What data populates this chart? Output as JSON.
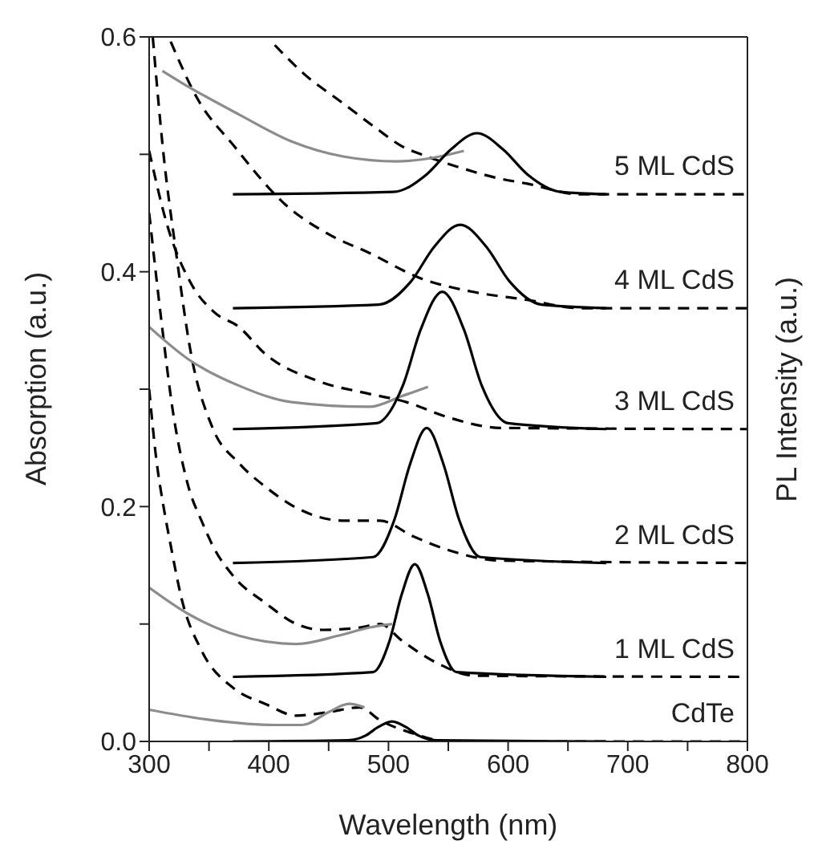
{
  "chart_data": {
    "type": "line",
    "xlabel": "Wavelength (nm)",
    "ylabel": "Absorption (a.u.)",
    "y2label": "PL Intensity (a.u.)",
    "xlim": [
      300,
      800
    ],
    "xticks": [
      300,
      {
        "value": 350,
        "label": null
      },
      400,
      {
        "value": 450,
        "label": null
      },
      500,
      {
        "value": 550,
        "label": null
      },
      600,
      {
        "value": 650,
        "label": null
      },
      700,
      {
        "value": 750,
        "label": null
      },
      800
    ],
    "ylim": [
      0,
      0.6
    ],
    "yticks": [
      {
        "value": 0,
        "label": "0.0"
      },
      {
        "value": 0.1,
        "label": null
      },
      {
        "value": 0.2,
        "label": "0.2"
      },
      {
        "value": 0.3,
        "label": null
      },
      {
        "value": 0.4,
        "label": "0.4"
      },
      {
        "value": 0.5,
        "label": null
      },
      {
        "value": 0.6,
        "label": "0.6"
      }
    ],
    "marker": "none",
    "series": [
      {
        "color": "#000000",
        "line_style": "dashed",
        "x": [
          405,
          430,
          460,
          490,
          511,
          530,
          559,
          590,
          616,
          660,
          700,
          800
        ],
        "values": [
          0.593,
          0.568,
          0.545,
          0.522,
          0.507,
          0.499,
          0.489,
          0.48,
          0.475,
          0.466,
          0.466,
          0.466
        ]
      },
      {
        "color": "#000000",
        "line_style": "dashed",
        "x": [
          318,
          340,
          371,
          414,
          450,
          484,
          528,
          570,
          616,
          660,
          800
        ],
        "values": [
          0.596,
          0.548,
          0.507,
          0.457,
          0.432,
          0.416,
          0.394,
          0.383,
          0.376,
          0.369,
          0.369
        ]
      },
      {
        "color": "#000000",
        "line_style": "dashed",
        "x": [
          300,
          315,
          335,
          355,
          375,
          397,
          441,
          484,
          515,
          550,
          594,
          800
        ],
        "values": [
          0.503,
          0.44,
          0.39,
          0.365,
          0.353,
          0.33,
          0.307,
          0.296,
          0.289,
          0.276,
          0.267,
          0.266
        ]
      },
      {
        "color": "#000000",
        "line_style": "dashed",
        "x": [
          303,
          312,
          322,
          335,
          353,
          375,
          397,
          423,
          463,
          493,
          520,
          550,
          594,
          800
        ],
        "values": [
          0.6,
          0.5,
          0.42,
          0.33,
          0.267,
          0.237,
          0.217,
          0.199,
          0.188,
          0.188,
          0.175,
          0.163,
          0.154,
          0.152
        ]
      },
      {
        "color": "#000000",
        "line_style": "dashed",
        "x": [
          300,
          310,
          320,
          332,
          345,
          353,
          371,
          397,
          423,
          445,
          476,
          493,
          511,
          542,
          572,
          800
        ],
        "values": [
          0.45,
          0.36,
          0.28,
          0.22,
          0.185,
          0.167,
          0.14,
          0.118,
          0.1,
          0.095,
          0.097,
          0.1,
          0.086,
          0.066,
          0.056,
          0.055
        ]
      },
      {
        "color": "#000000",
        "line_style": "dashed",
        "x": [
          300,
          306,
          312,
          318,
          327,
          344,
          371,
          397,
          423,
          450,
          476,
          493,
          520,
          550,
          800
        ],
        "values": [
          0.3,
          0.24,
          0.2,
          0.167,
          0.122,
          0.077,
          0.045,
          0.032,
          0.022,
          0.025,
          0.029,
          0.018,
          0.007,
          0.0,
          0.0
        ]
      },
      {
        "color": "#8c8c8c",
        "line_style": "solid",
        "x": [
          311,
          327,
          375,
          419,
          463,
          507,
          542,
          563
        ],
        "values": [
          0.571,
          0.561,
          0.534,
          0.511,
          0.498,
          0.494,
          0.498,
          0.503
        ]
      },
      {
        "color": "#8c8c8c",
        "line_style": "solid",
        "x": [
          300,
          332,
          375,
          419,
          484,
          511,
          533
        ],
        "values": [
          0.353,
          0.326,
          0.303,
          0.289,
          0.285,
          0.294,
          0.302
        ]
      },
      {
        "color": "#8c8c8c",
        "line_style": "solid",
        "x": [
          300,
          332,
          375,
          423,
          458,
          484,
          503
        ],
        "values": [
          0.131,
          0.109,
          0.09,
          0.083,
          0.09,
          0.097,
          0.1
        ]
      },
      {
        "color": "#8c8c8c",
        "line_style": "solid",
        "x": [
          300,
          353,
          405,
          428,
          450,
          467,
          480
        ],
        "values": [
          0.027,
          0.018,
          0.014,
          0.014,
          0.025,
          0.032,
          0.029
        ]
      },
      {
        "color": "#000000",
        "line_style": "solid",
        "x": [
          370,
          504,
          532,
          552,
          574,
          596,
          616,
          644,
          682
        ],
        "values": [
          0.466,
          0.468,
          0.483,
          0.504,
          0.518,
          0.504,
          0.483,
          0.468,
          0.466
        ]
      },
      {
        "color": "#000000",
        "line_style": "solid",
        "x": [
          370,
          492,
          519,
          538,
          560,
          582,
          601,
          628,
          682
        ],
        "values": [
          0.369,
          0.372,
          0.392,
          0.421,
          0.44,
          0.421,
          0.392,
          0.372,
          0.369
        ]
      },
      {
        "color": "#000000",
        "line_style": "solid",
        "x": [
          370,
          490,
          512,
          527,
          545,
          563,
          578,
          600,
          682
        ],
        "values": [
          0.266,
          0.271,
          0.303,
          0.351,
          0.383,
          0.351,
          0.303,
          0.271,
          0.266
        ]
      },
      {
        "color": "#000000",
        "line_style": "solid",
        "x": [
          370,
          487,
          505,
          518,
          532,
          546,
          559,
          577,
          682
        ],
        "values": [
          0.152,
          0.157,
          0.189,
          0.236,
          0.267,
          0.236,
          0.189,
          0.157,
          0.152
        ]
      },
      {
        "color": "#000000",
        "line_style": "solid",
        "x": [
          370,
          487,
          501,
          511,
          522,
          533,
          543,
          557,
          682
        ],
        "values": [
          0.055,
          0.059,
          0.086,
          0.125,
          0.151,
          0.125,
          0.086,
          0.059,
          0.055
        ]
      },
      {
        "color": "#000000",
        "line_style": "solid",
        "x": [
          370,
          466,
          481,
          491,
          503,
          515,
          525,
          540,
          682
        ],
        "values": [
          0.0,
          0.001,
          0.005,
          0.012,
          0.017,
          0.012,
          0.005,
          0.001,
          0.0
        ]
      }
    ],
    "annotations": [
      "5 ML CdS",
      "4 ML CdS",
      "3 ML CdS",
      "2 ML CdS",
      "1 ML CdS",
      "CdTe"
    ]
  }
}
